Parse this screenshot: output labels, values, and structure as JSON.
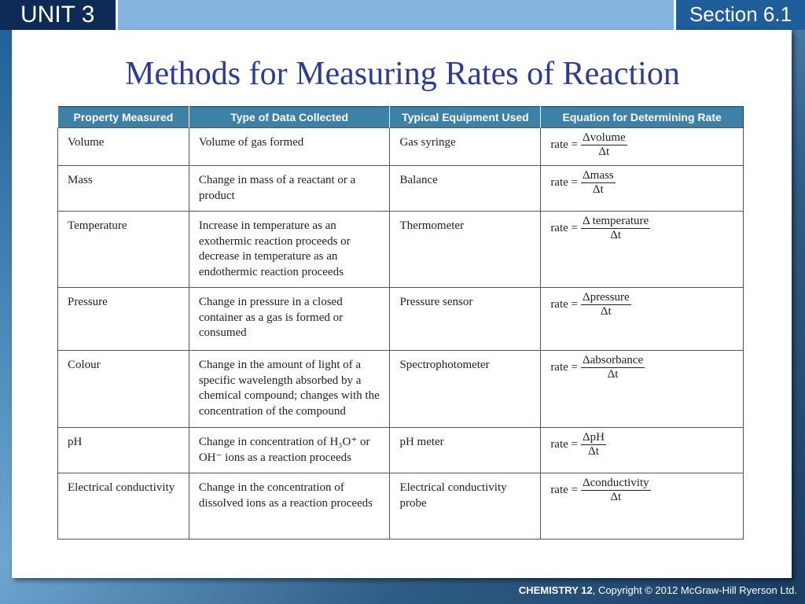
{
  "header": {
    "unit": "UNIT 3",
    "section": "Section 6.1"
  },
  "title": "Methods for Measuring Rates of Reaction",
  "table": {
    "columns": [
      "Property Measured",
      "Type of Data Collected",
      "Typical Equipment Used",
      "Equation for Determining Rate"
    ],
    "rows": [
      [
        "Volume",
        "Volume of gas formed",
        "Gas syringe",
        {
          "lhs": "rate =",
          "numerator": "Δvolume",
          "denominator": "Δt"
        }
      ],
      [
        "Mass",
        "Change in mass of a reactant or a product",
        "Balance",
        {
          "lhs": "rate =",
          "numerator": "Δmass",
          "denominator": "Δt"
        }
      ],
      [
        "Temperature",
        "Increase in temperature as an exothermic reaction proceeds or decrease in temperature as an endothermic reaction proceeds",
        "Thermometer",
        {
          "lhs": "rate =",
          "numerator": "Δ temperature",
          "denominator": "Δt"
        }
      ],
      [
        "Pressure",
        "Change in pressure in a closed container as a gas is formed or consumed",
        "Pressure sensor",
        {
          "lhs": "rate =",
          "numerator": "Δpressure",
          "denominator": "Δt"
        }
      ],
      [
        "Colour",
        "Change in the amount of light of a specific wavelength absorbed by a chemical compound; changes with the concentration of the compound",
        "Spectrophotometer",
        {
          "lhs": "rate =",
          "numerator": "Δabsorbance",
          "denominator": "Δt"
        }
      ],
      [
        "pH",
        "Change in concentration of H₃O⁺ or OH⁻ ions as a reaction proceeds",
        "pH meter",
        {
          "lhs": "rate =",
          "numerator": "ΔpH",
          "denominator": "Δt"
        }
      ],
      [
        "Electrical conductivity",
        "Change in the concentration of dissolved ions as a reaction proceeds",
        "Electrical conductivity probe",
        {
          "lhs": "rate =",
          "numerator": "Δconductivity",
          "denominator": "Δt"
        }
      ]
    ]
  },
  "footer": {
    "brand": "CHEMISTRY 12",
    "copyright": ", Copyright © 2012 McGraw-Hill Ryerson Ltd."
  }
}
